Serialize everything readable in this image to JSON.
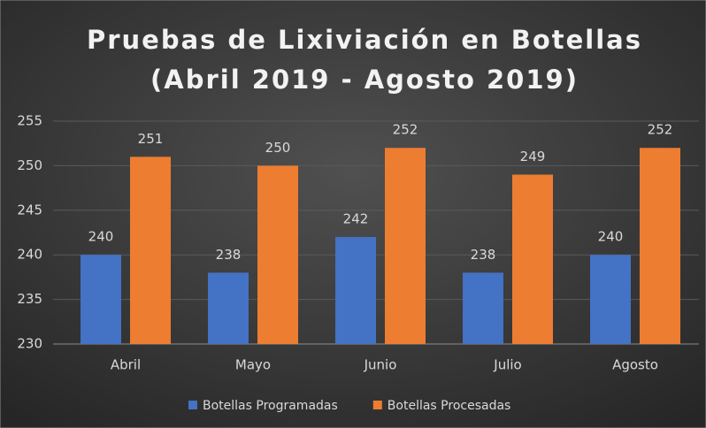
{
  "chart_data": {
    "type": "bar",
    "title": "Pruebas de Lixiviación en Botellas",
    "subtitle": "(Abril 2019 - Agosto 2019)",
    "categories": [
      "Abril",
      "Mayo",
      "Junio",
      "Julio",
      "Agosto"
    ],
    "series": [
      {
        "name": "Botellas Programadas",
        "color": "#4472c4",
        "values": [
          240,
          238,
          242,
          238,
          240
        ]
      },
      {
        "name": "Botellas Procesadas",
        "color": "#ed7d31",
        "values": [
          251,
          250,
          252,
          249,
          252
        ]
      }
    ],
    "ylim": [
      230,
      255
    ],
    "yticks": [
      230,
      235,
      240,
      245,
      250,
      255
    ],
    "grid": true,
    "legend": "bottom"
  }
}
